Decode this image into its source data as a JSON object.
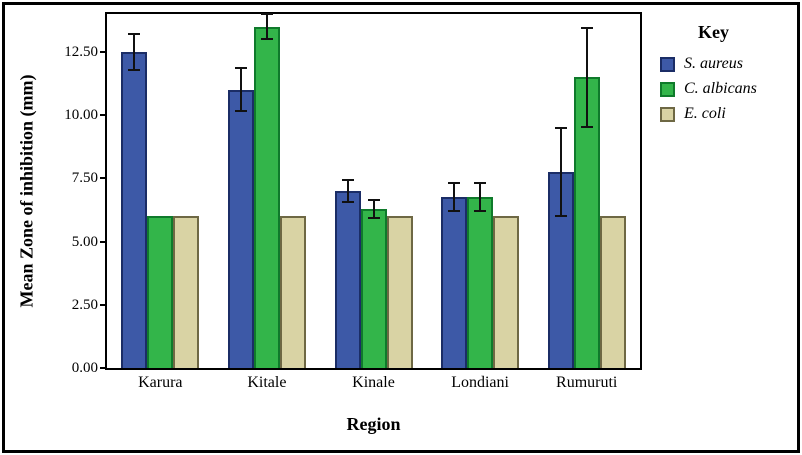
{
  "chart_data": {
    "type": "bar",
    "title": "",
    "xlabel": "Region",
    "ylabel": "Mean Zone of inhibition (mm)",
    "legend_title": "Key",
    "legend_position": "right",
    "grid": false,
    "ylim": [
      0,
      14
    ],
    "yticks": [
      0,
      2.5,
      5,
      7.5,
      10,
      12.5
    ],
    "ytick_labels": [
      "0.00",
      "2.50",
      "5.00",
      "7.50",
      "10.00",
      "12.50"
    ],
    "categories": [
      "Karura",
      "Kitale",
      "Kinale",
      "Londiani",
      "Rumuruti"
    ],
    "series": [
      {
        "name": "S. aureus",
        "color": "#3d59a7",
        "border": "#1b2d66",
        "values": [
          12.5,
          11.0,
          7.0,
          6.75,
          7.75
        ],
        "errors": [
          0.7,
          0.85,
          0.45,
          0.55,
          1.75
        ]
      },
      {
        "name": "C. albicans",
        "color": "#33b54a",
        "border": "#0f7a2b",
        "values": [
          6.0,
          13.5,
          6.3,
          6.75,
          11.5
        ],
        "errors": [
          0,
          0.5,
          0.35,
          0.55,
          1.95
        ]
      },
      {
        "name": "E. coli",
        "color": "#d9d3a4",
        "border": "#6e6844",
        "values": [
          6.0,
          6.0,
          6.0,
          6.0,
          6.0
        ],
        "errors": [
          0,
          0,
          0,
          0,
          0
        ]
      }
    ]
  }
}
